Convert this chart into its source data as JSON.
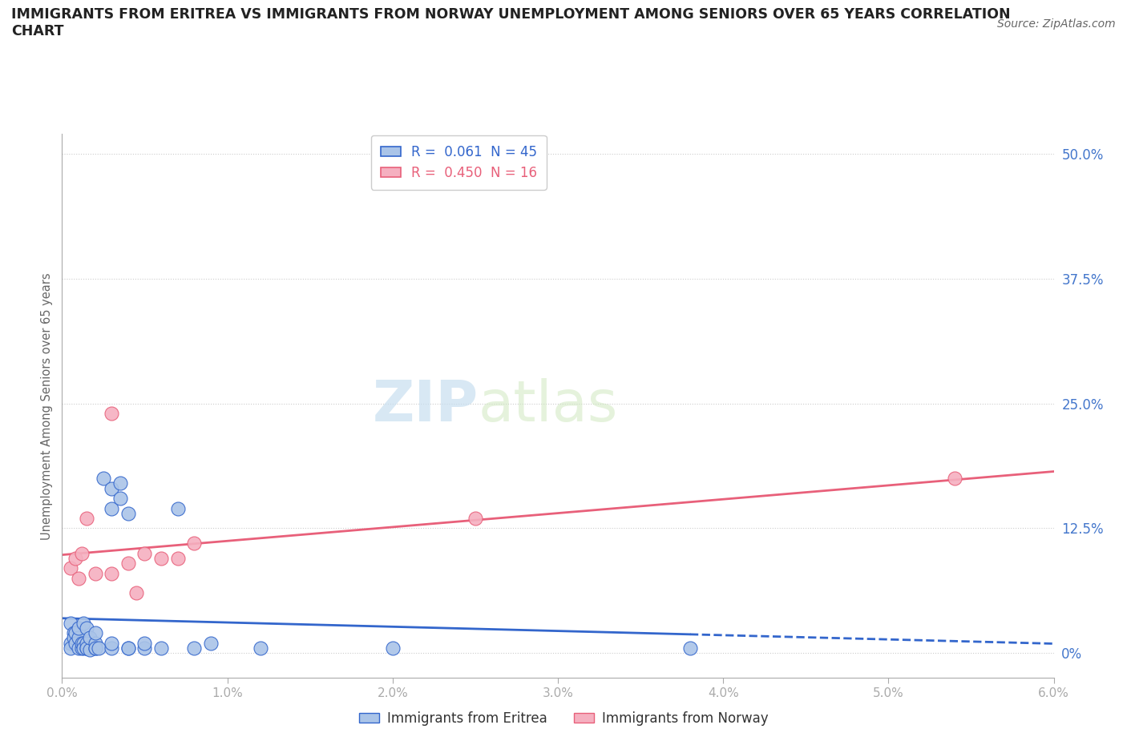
{
  "title": "IMMIGRANTS FROM ERITREA VS IMMIGRANTS FROM NORWAY UNEMPLOYMENT AMONG SENIORS OVER 65 YEARS CORRELATION\nCHART",
  "source": "Source: ZipAtlas.com",
  "ylabel_left": "Unemployment Among Seniors over 65 years",
  "legend_eritrea": "Immigrants from Eritrea",
  "legend_norway": "Immigrants from Norway",
  "r_eritrea": 0.061,
  "n_eritrea": 45,
  "r_norway": 0.45,
  "n_norway": 16,
  "color_eritrea": "#aac4e8",
  "color_norway": "#f5b0c0",
  "line_color_eritrea": "#3366cc",
  "line_color_norway": "#e8607a",
  "x_min": 0.0,
  "x_max": 0.06,
  "y_min": -0.025,
  "y_max": 0.52,
  "yticks": [
    0.0,
    0.125,
    0.25,
    0.375,
    0.5
  ],
  "ytick_labels": [
    "0%",
    "12.5%",
    "25.0%",
    "37.5%",
    "50.0%"
  ],
  "xticks": [
    0.0,
    0.01,
    0.02,
    0.03,
    0.04,
    0.05,
    0.06
  ],
  "xtick_labels": [
    "0.0%",
    "1.0%",
    "2.0%",
    "3.0%",
    "4.0%",
    "5.0%",
    "6.0%"
  ],
  "eritrea_x": [
    0.0005,
    0.0005,
    0.0005,
    0.0007,
    0.0007,
    0.0008,
    0.0008,
    0.001,
    0.001,
    0.001,
    0.0012,
    0.0012,
    0.0013,
    0.0013,
    0.0013,
    0.0015,
    0.0015,
    0.0015,
    0.0015,
    0.0017,
    0.0017,
    0.002,
    0.002,
    0.002,
    0.002,
    0.0022,
    0.0025,
    0.003,
    0.003,
    0.003,
    0.003,
    0.0035,
    0.0035,
    0.004,
    0.004,
    0.004,
    0.005,
    0.005,
    0.006,
    0.007,
    0.008,
    0.009,
    0.012,
    0.02,
    0.038
  ],
  "eritrea_y": [
    0.03,
    0.01,
    0.005,
    0.02,
    0.015,
    0.02,
    0.01,
    0.005,
    0.015,
    0.025,
    0.005,
    0.01,
    0.01,
    0.005,
    0.03,
    0.005,
    0.01,
    0.005,
    0.025,
    0.003,
    0.015,
    0.005,
    0.01,
    0.005,
    0.02,
    0.005,
    0.175,
    0.165,
    0.005,
    0.01,
    0.145,
    0.17,
    0.155,
    0.005,
    0.005,
    0.14,
    0.005,
    0.01,
    0.005,
    0.145,
    0.005,
    0.01,
    0.005,
    0.005,
    0.005
  ],
  "norway_x": [
    0.0005,
    0.0008,
    0.001,
    0.0012,
    0.0015,
    0.002,
    0.003,
    0.003,
    0.004,
    0.0045,
    0.005,
    0.006,
    0.007,
    0.008,
    0.025,
    0.054
  ],
  "norway_y": [
    0.085,
    0.095,
    0.075,
    0.1,
    0.135,
    0.08,
    0.24,
    0.08,
    0.09,
    0.06,
    0.1,
    0.095,
    0.095,
    0.11,
    0.135,
    0.175
  ],
  "watermark_zip": "ZIP",
  "watermark_atlas": "atlas",
  "background_color": "#ffffff",
  "grid_color": "#cccccc",
  "tick_color": "#4477cc",
  "spine_color": "#aaaaaa"
}
